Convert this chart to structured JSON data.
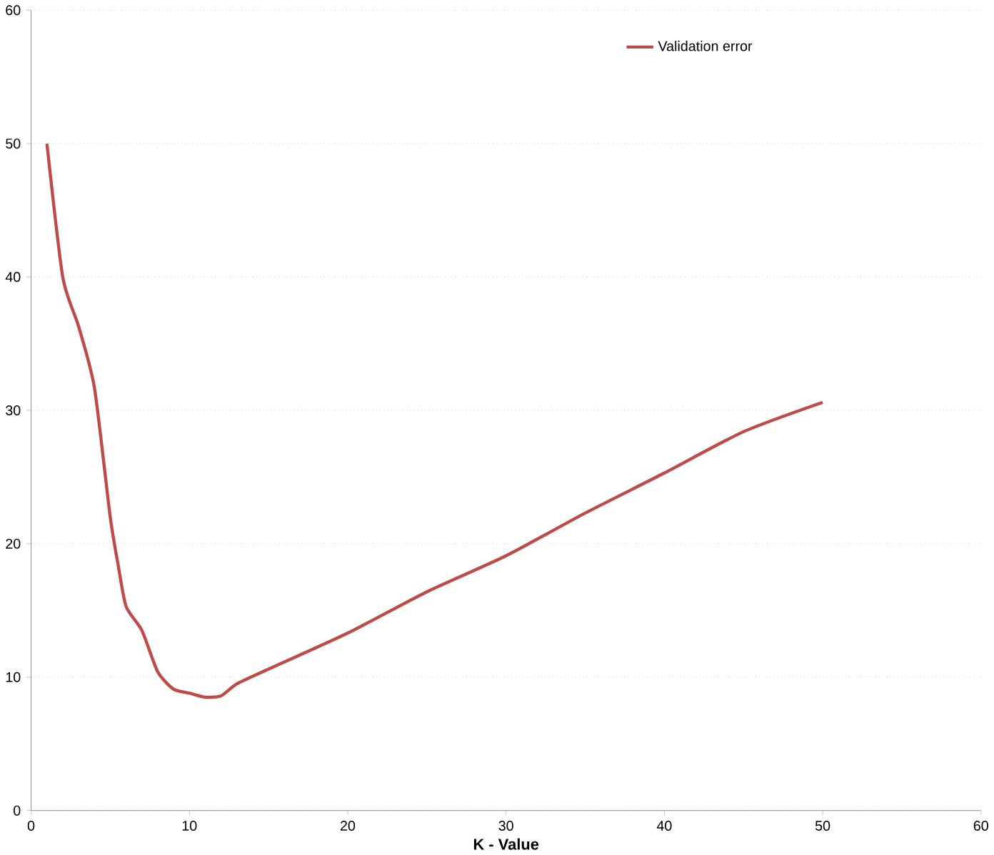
{
  "chart_data": {
    "type": "line",
    "xlabel": "K - Value",
    "x": [
      1,
      2,
      3,
      4,
      5,
      5.5,
      6,
      7,
      8,
      9,
      10,
      11,
      12,
      13,
      15,
      20,
      25,
      30,
      35,
      40,
      45,
      50
    ],
    "series": [
      {
        "name": "Validation error",
        "color": "#be4b48",
        "values": [
          50,
          40,
          36.3,
          31.7,
          22,
          18.4,
          15.3,
          13.5,
          10.4,
          9.1,
          8.8,
          8.5,
          8.6,
          9.5,
          10.6,
          13.3,
          16.4,
          19.1,
          22.3,
          25.3,
          28.4,
          30.6
        ]
      }
    ],
    "xlim": [
      0,
      60
    ],
    "xticks": [
      0,
      10,
      20,
      30,
      40,
      50,
      60
    ],
    "ylim": [
      0,
      60
    ],
    "yticks": [
      0,
      10,
      20,
      30,
      40,
      50,
      60
    ],
    "grid": "y",
    "legend": "top right",
    "marker": "none",
    "line_style": "solid"
  }
}
